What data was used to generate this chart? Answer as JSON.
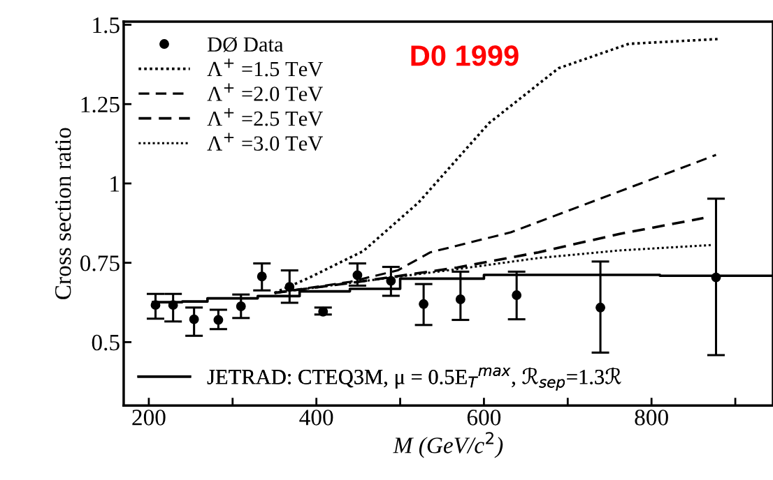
{
  "chart_data": {
    "type": "scatter",
    "xlabel": "M (GeV/c$^{2}$)",
    "ylabel": "Cross section ratio",
    "annotations": [
      "D0 1999"
    ],
    "xlim": [
      170,
      945
    ],
    "ylim": [
      0.3,
      1.51
    ],
    "xticks": [
      200,
      {
        "value": 300,
        "label": null
      },
      400,
      {
        "value": 500,
        "label": null
      },
      600,
      {
        "value": 700,
        "label": null
      },
      800,
      {
        "value": 900,
        "label": null
      }
    ],
    "yticks": [
      0.5,
      0.75,
      1,
      1.25,
      1.5
    ],
    "grid": false,
    "legend": "left",
    "series": [
      {
        "name": "DØ Data",
        "color": "#000000",
        "marker": "circle",
        "x": [
          208,
          229,
          254,
          283,
          310,
          335,
          368,
          408,
          449,
          489,
          528,
          572,
          639,
          739,
          877
        ],
        "values": [
          0.617,
          0.617,
          0.572,
          0.57,
          0.613,
          0.707,
          0.674,
          0.596,
          0.711,
          0.693,
          0.62,
          0.635,
          0.648,
          0.609,
          0.704
        ],
        "errors": [
          [
            0.574,
            0.652
          ],
          [
            0.565,
            0.652
          ],
          [
            0.52,
            0.609
          ],
          [
            0.541,
            0.602
          ],
          [
            0.576,
            0.65
          ],
          [
            0.663,
            0.748
          ],
          [
            0.624,
            0.726
          ],
          [
            0.587,
            0.609
          ],
          [
            0.678,
            0.748
          ],
          [
            0.646,
            0.737
          ],
          [
            0.554,
            0.683
          ],
          [
            0.57,
            0.722
          ],
          [
            0.572,
            0.722
          ],
          [
            0.467,
            0.754
          ],
          [
            0.459,
            0.952
          ]
        ]
      },
      {
        "name": "Λ$^{+}$ =1.5 TeV",
        "type": "line",
        "color": "#000000",
        "line_style": "dotted",
        "x": [
          350,
          389,
          456,
          522,
          606,
          689,
          773,
          879
        ],
        "values": [
          0.655,
          0.7,
          0.787,
          0.94,
          1.19,
          1.363,
          1.44,
          1.455
        ]
      },
      {
        "name": "Λ$^{+}$ =2.0 TeV",
        "type": "line",
        "color": "#000000",
        "line_style": "dashed",
        "x": [
          350,
          440,
          497,
          536,
          632,
          787,
          877
        ],
        "values": [
          0.655,
          0.69,
          0.726,
          0.783,
          0.846,
          1.0,
          1.09
        ]
      },
      {
        "name": "Λ$^{+}$ =2.5 TeV",
        "type": "line",
        "color": "#000000",
        "line_style": "dashed",
        "x": [
          350,
          450,
          568,
          665,
          762,
          862
        ],
        "values": [
          0.655,
          0.69,
          0.735,
          0.783,
          0.841,
          0.891
        ]
      },
      {
        "name": "Λ$^{+}$ =3.0 TeV",
        "type": "line",
        "color": "#000000",
        "line_style": "dotted",
        "x": [
          350,
          450,
          568,
          665,
          762,
          872
        ],
        "values": [
          0.655,
          0.69,
          0.73,
          0.765,
          0.789,
          0.806
        ]
      },
      {
        "name": "JETRAD: CTEQ3M, μ = 0.5E$_{T}$$^{max}$, ℛ$_{sep}$=1.3ℛ",
        "type": "step",
        "color": "#000000",
        "line_style": "solid",
        "x": [
          205,
          240,
          270,
          330,
          380,
          440,
          500,
          600,
          700,
          810,
          945
        ],
        "values": [
          0.626,
          0.628,
          0.638,
          0.645,
          0.66,
          0.668,
          0.7,
          0.712,
          0.712,
          0.709,
          0.709
        ]
      }
    ]
  }
}
